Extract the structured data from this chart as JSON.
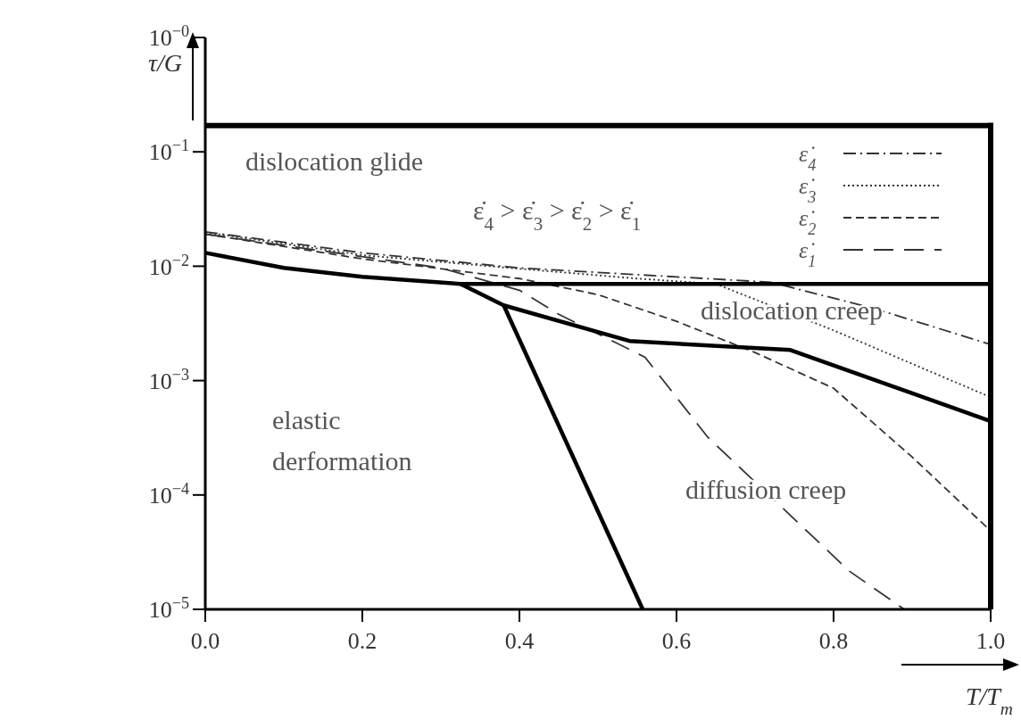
{
  "chart_data": {
    "type": "line",
    "xlabel": "T/T$_{m}$",
    "ylabel": "τ/G",
    "log": "y",
    "xlim": [
      0,
      1
    ],
    "ylim": [
      1e-05,
      1
    ],
    "xticks": [
      {
        "value": 0,
        "label": "0.0"
      },
      0.2,
      0.4,
      0.6,
      0.8,
      {
        "value": 1,
        "label": "1.0"
      }
    ],
    "yticks": [
      {
        "value": 1e-05,
        "label": "10$^{−5}$"
      },
      {
        "value": 0.0001,
        "label": "10$^{−4}$"
      },
      {
        "value": 0.001,
        "label": "10$^{−3}$"
      },
      {
        "value": 0.01,
        "label": "10$^{−2}$"
      },
      {
        "value": 0.1,
        "label": "10$^{−1}$"
      },
      {
        "value": 1,
        "label": "10$^{−0}$"
      }
    ],
    "grid": false,
    "legend": "top right",
    "marker": "none",
    "series": [
      {
        "name": "ε̇$_{4}$",
        "color": "#333333",
        "line_style": "dashdot",
        "x": [
          0,
          0.2,
          0.4,
          0.6,
          0.72,
          0.85,
          1.0
        ],
        "values": [
          0.02,
          0.0131,
          0.00966,
          0.00807,
          0.00724,
          0.0043,
          0.00207
        ]
      },
      {
        "name": "ε̇$_{3}$",
        "color": "#333333",
        "line_style": "dotted",
        "x": [
          0,
          0.2,
          0.4,
          0.55,
          0.65,
          0.8,
          1.0
        ],
        "values": [
          0.0198,
          0.0125,
          0.0095,
          0.0078,
          0.007,
          0.00275,
          0.000716
        ]
      },
      {
        "name": "ε̇$_{2}$",
        "color": "#333333",
        "line_style": "dashed",
        "x": [
          0,
          0.2,
          0.4,
          0.5,
          0.6,
          0.7,
          0.8,
          0.9,
          1.0
        ],
        "values": [
          0.0191,
          0.0116,
          0.0078,
          0.00564,
          0.0033,
          0.00176,
          0.000857,
          0.000215,
          4.85e-05
        ]
      },
      {
        "name": "ε̇$_{1}$",
        "color": "#333333",
        "line_style": "longdashed",
        "x": [
          0,
          0.3,
          0.4,
          0.45,
          0.56,
          0.64,
          0.73,
          0.82,
          0.89
        ],
        "values": [
          0.0191,
          0.00966,
          0.00617,
          0.0038,
          0.0016,
          0.000319,
          8.3e-05,
          2.16e-05,
          1e-05
        ]
      },
      {
        "color": "#000000",
        "line_style": "solid",
        "x": [
          0,
          0.1,
          0.2,
          0.325,
          1.0
        ],
        "values": [
          0.0131,
          0.00966,
          0.00807,
          0.007,
          0.007
        ]
      },
      {
        "color": "#000000",
        "line_style": "solid",
        "x": [
          0.325,
          0.38,
          0.54,
          0.745,
          1.0
        ],
        "values": [
          0.007,
          0.00455,
          0.00222,
          0.00185,
          0.000442
        ]
      },
      {
        "color": "#000000",
        "line_style": "solid",
        "x": [
          0.38,
          0.557
        ],
        "values": [
          0.00455,
          1e-05
        ]
      }
    ],
    "ref_lines": [
      {
        "axis": "y",
        "value": 0.17,
        "color": "#000000"
      },
      {
        "axis": "x",
        "value": 1,
        "color": "#000000"
      }
    ],
    "annotations": [
      "dislocation glide",
      "ε̇$_{4}$ > ε̇$_{3}$ > ε̇$_{2}$ > ε̇$_{1}$",
      "dislocation creep",
      "elastic\nderformation",
      "diffusion creep"
    ]
  }
}
